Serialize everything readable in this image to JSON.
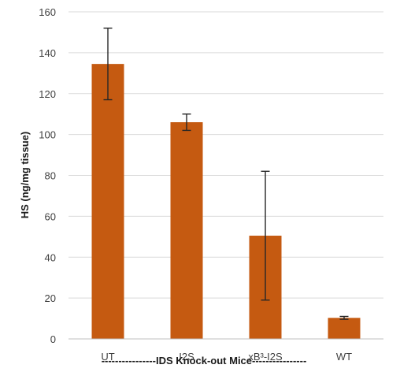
{
  "chart_data": {
    "type": "bar",
    "categories": [
      "UT",
      "I2S",
      "xB³-I2S",
      "WT"
    ],
    "values": [
      134.5,
      106,
      50.5,
      10.3
    ],
    "error": [
      17.5,
      4,
      31.5,
      0.7
    ],
    "title": "",
    "xlabel": "----------------IDS Knock-out Mice----------------",
    "ylabel": "HS (ng/mg tissue)",
    "ylim": [
      0,
      160
    ],
    "yticks": [
      "0",
      "20",
      "40",
      "60",
      "80",
      "100",
      "120",
      "140",
      "160"
    ],
    "grid": true,
    "legend": "none",
    "bar_color": "#c55a11"
  }
}
